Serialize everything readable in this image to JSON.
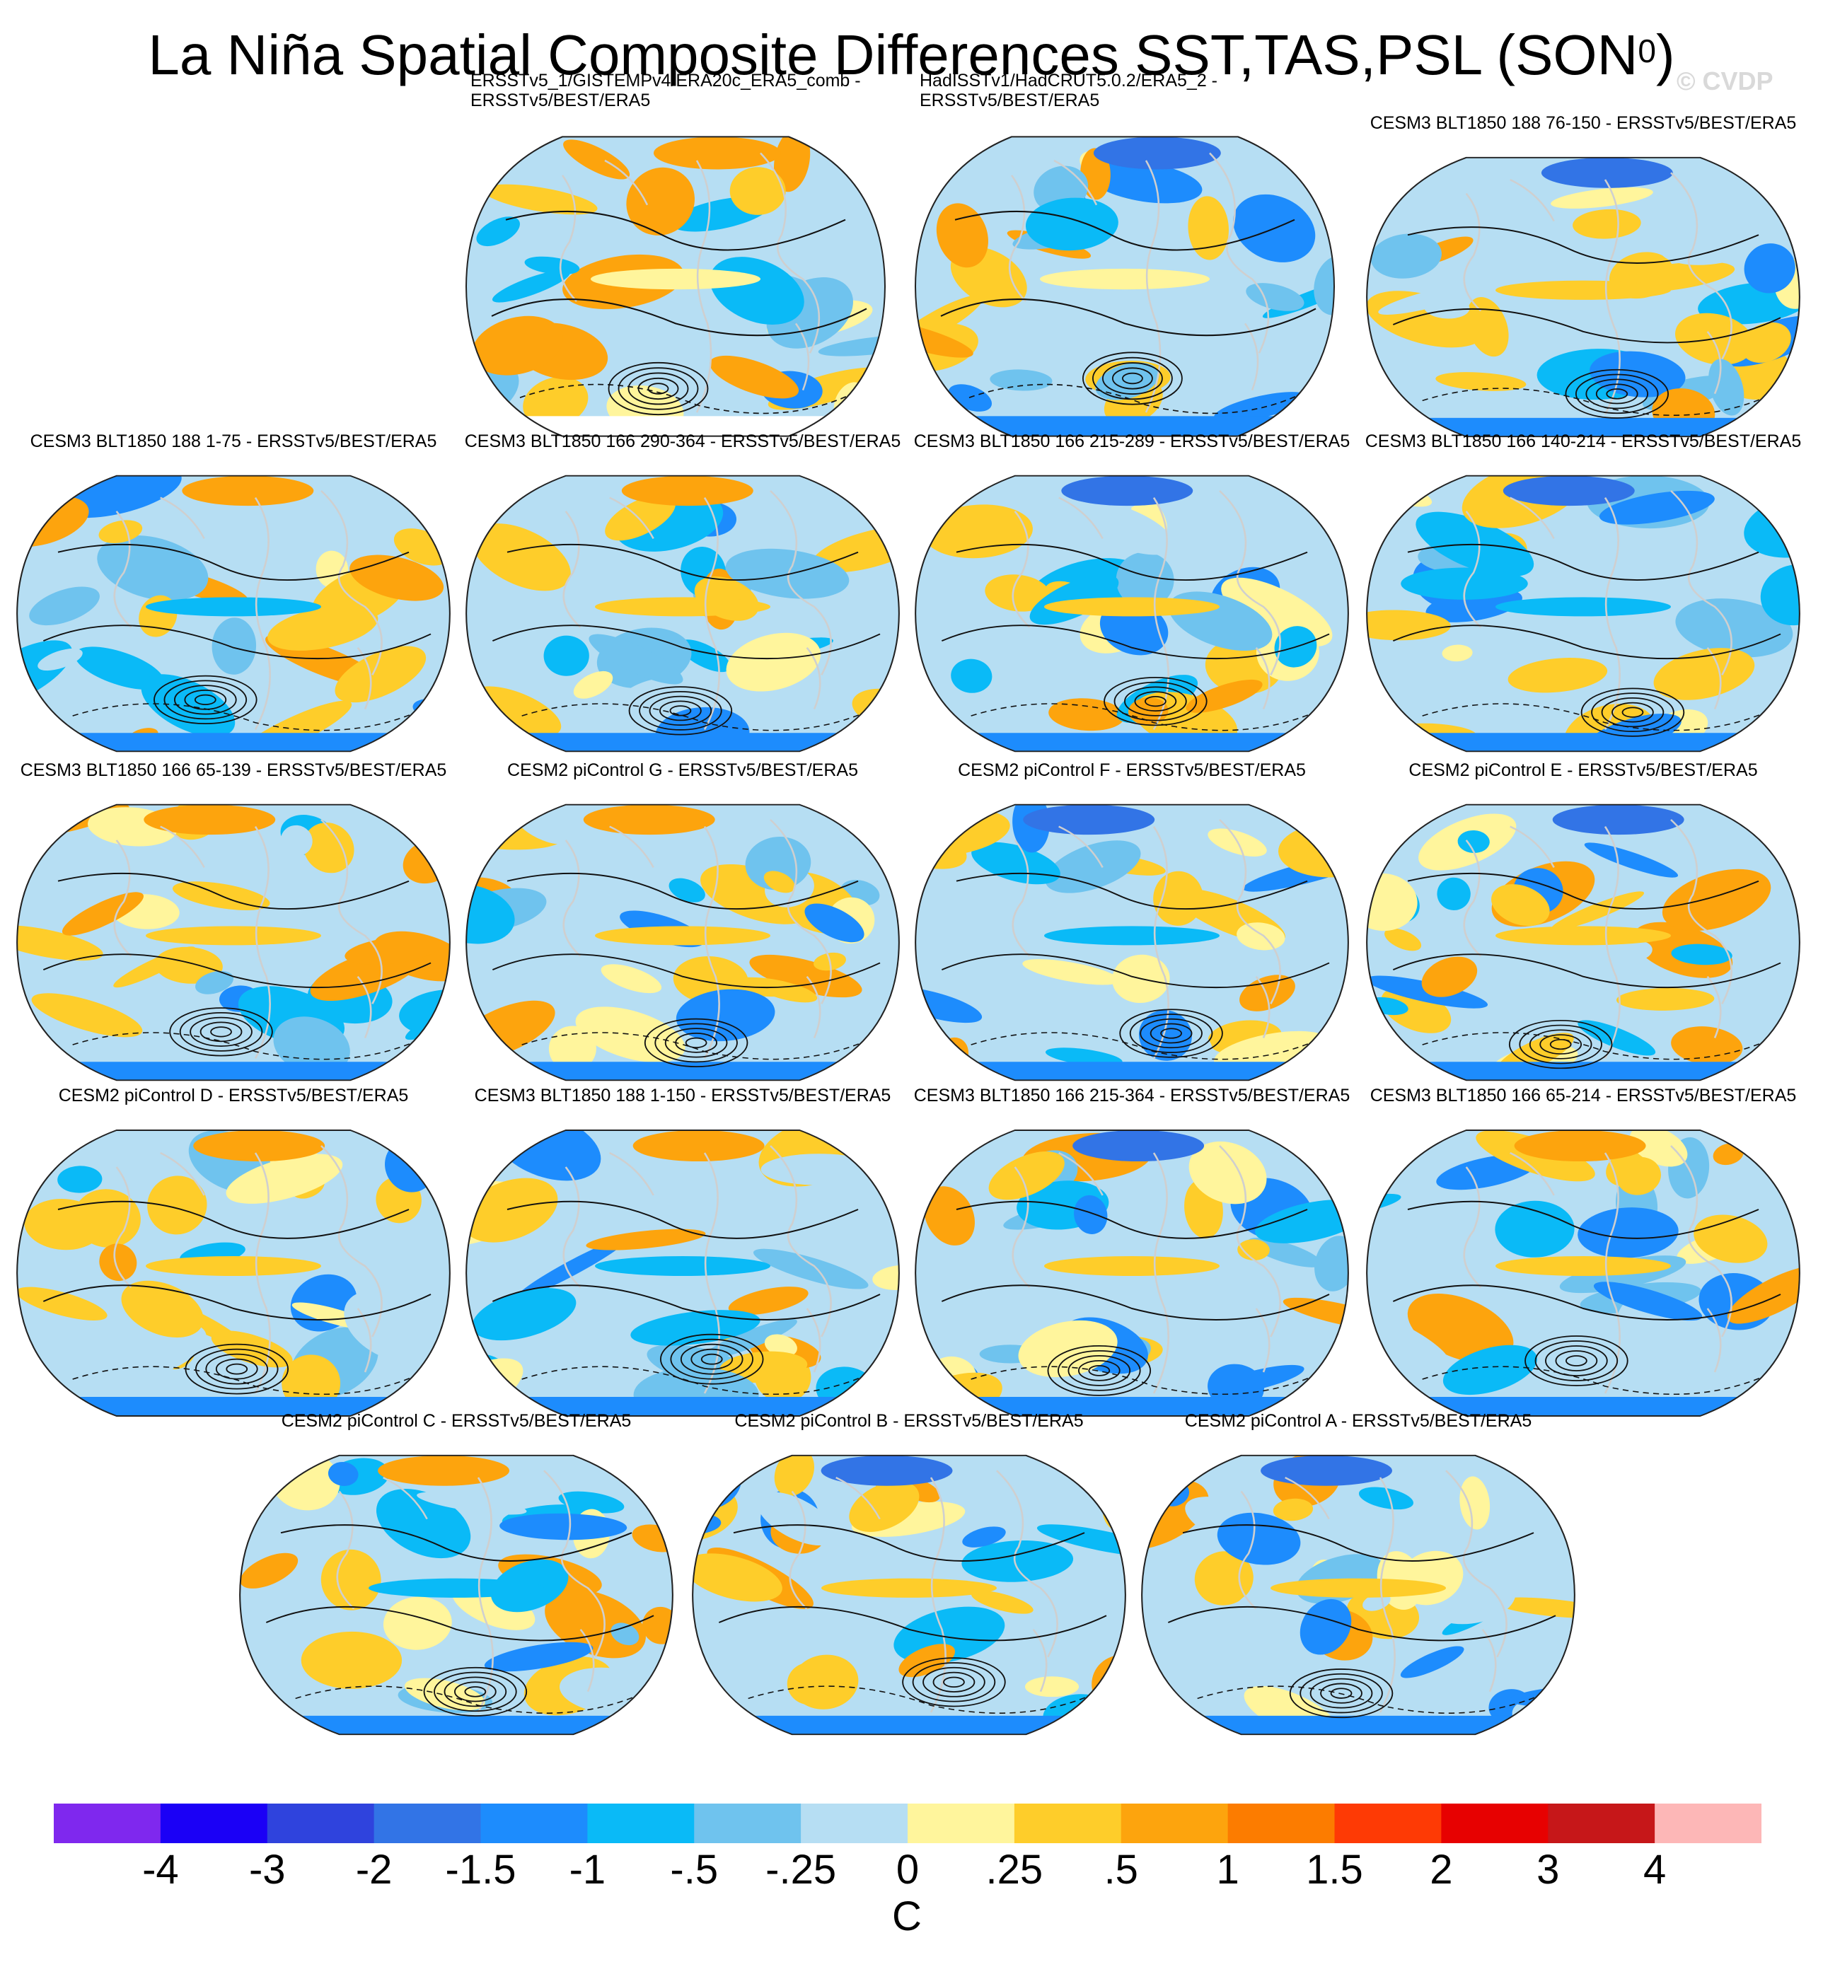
{
  "title": {
    "main": "La Niña Spatial Composite Differences SST,TAS,PSL (SON",
    "sup": "0",
    "close": ")"
  },
  "watermark": "© CVDP",
  "panels": [
    {
      "lines": [
        "ERSSTv5_1/GISTEMPv4/ERA20c_ERA5_comb -",
        "ERSSTv5/BEST/ERA5"
      ]
    },
    {
      "lines": [
        "HadISSTv1/HadCRUT5.0.2/ERA5_2 -",
        "ERSSTv5/BEST/ERA5"
      ]
    },
    {
      "lines": [
        "CESM3 BLT1850 188 76-150 - ERSSTv5/BEST/ERA5"
      ]
    },
    {
      "lines": [
        "CESM3 BLT1850 188 1-75 - ERSSTv5/BEST/ERA5"
      ]
    },
    {
      "lines": [
        "CESM3 BLT1850 166 290-364 - ERSSTv5/BEST/ERA5"
      ]
    },
    {
      "lines": [
        "CESM3 BLT1850 166 215-289 - ERSSTv5/BEST/ERA5"
      ]
    },
    {
      "lines": [
        "CESM3 BLT1850 166 140-214 - ERSSTv5/BEST/ERA5"
      ]
    },
    {
      "lines": [
        "CESM3 BLT1850 166 65-139 - ERSSTv5/BEST/ERA5"
      ]
    },
    {
      "lines": [
        "CESM2 piControl G - ERSSTv5/BEST/ERA5"
      ]
    },
    {
      "lines": [
        "CESM2 piControl F - ERSSTv5/BEST/ERA5"
      ]
    },
    {
      "lines": [
        "CESM2 piControl E - ERSSTv5/BEST/ERA5"
      ]
    },
    {
      "lines": [
        "CESM2 piControl D - ERSSTv5/BEST/ERA5"
      ]
    },
    {
      "lines": [
        "CESM3 BLT1850 188 1-150 - ERSSTv5/BEST/ERA5"
      ]
    },
    {
      "lines": [
        "CESM3 BLT1850 166 215-364 - ERSSTv5/BEST/ERA5"
      ]
    },
    {
      "lines": [
        "CESM3 BLT1850 166 65-214 - ERSSTv5/BEST/ERA5"
      ]
    },
    {
      "lines": [
        "CESM2 piControl C - ERSSTv5/BEST/ERA5"
      ]
    },
    {
      "lines": [
        "CESM2 piControl B - ERSSTv5/BEST/ERA5"
      ]
    },
    {
      "lines": [
        "CESM2 piControl A - ERSSTv5/BEST/ERA5"
      ]
    }
  ],
  "colorbar": {
    "colors": [
      "#7f28ee",
      "#1b00f6",
      "#2f43dd",
      "#3274e6",
      "#1d8cfd",
      "#0abaf7",
      "#6fc3ee",
      "#b6def3",
      "#fff59c",
      "#fecd2a",
      "#fda40d",
      "#fc7c00",
      "#fe3a05",
      "#e70101",
      "#c61719",
      "#fdb7b7"
    ],
    "labels": [
      "-4",
      "-3",
      "-2",
      "-1.5",
      "-1",
      "-.5",
      "-.25",
      "0",
      ".25",
      ".5",
      "1",
      "1.5",
      "2",
      "3",
      "4"
    ],
    "unit": "C"
  }
}
